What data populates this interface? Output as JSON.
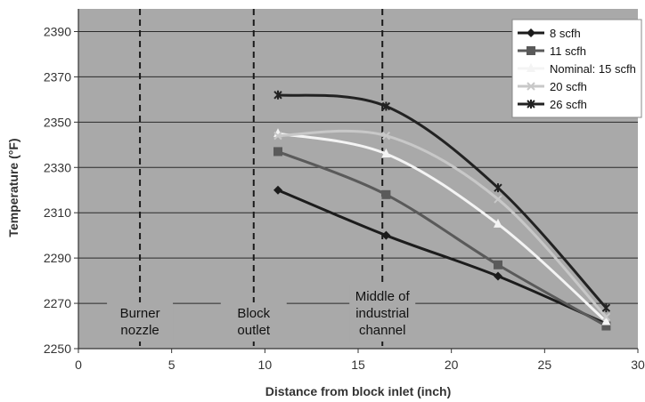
{
  "chart_data": {
    "type": "line",
    "title": "",
    "xlabel": "Distance from block inlet (inch)",
    "ylabel": "Temperature (°F)",
    "xlim": [
      0,
      30
    ],
    "ylim": [
      2250,
      2400
    ],
    "xticks": [
      0,
      5,
      10,
      15,
      20,
      25,
      30
    ],
    "yticks": [
      2250,
      2270,
      2290,
      2310,
      2330,
      2350,
      2370,
      2390
    ],
    "grid": "horizontal",
    "legend_position": "top-right",
    "plot_background": "#a9a9a9",
    "x": [
      10.7,
      16.5,
      22.5,
      28.3
    ],
    "series": [
      {
        "name": "8 scfh",
        "values": [
          2320,
          2300,
          2282,
          2261
        ],
        "color": "#1c1c1c",
        "marker": "diamond"
      },
      {
        "name": "11 scfh",
        "values": [
          2337,
          2318,
          2287,
          2260
        ],
        "color": "#5a5a5a",
        "marker": "square"
      },
      {
        "name": "Nominal: 15 scfh",
        "values": [
          2345,
          2336,
          2305,
          2262
        ],
        "color": "#f4f4f4",
        "marker": "triangle"
      },
      {
        "name": "20 scfh",
        "values": [
          2344,
          2344,
          2316,
          2264
        ],
        "color": "#c8c8c8",
        "marker": "x"
      },
      {
        "name": "26 scfh",
        "values": [
          2362,
          2357,
          2321,
          2268
        ],
        "color": "#222222",
        "marker": "star"
      }
    ],
    "vlines": [
      {
        "x": 3.3,
        "label_lines": [
          "Burner",
          "nozzle"
        ]
      },
      {
        "x": 9.4,
        "label_lines": [
          "Block",
          "outlet"
        ]
      },
      {
        "x": 16.3,
        "label_lines": [
          "Middle of",
          "industrial",
          "channel"
        ]
      }
    ]
  }
}
